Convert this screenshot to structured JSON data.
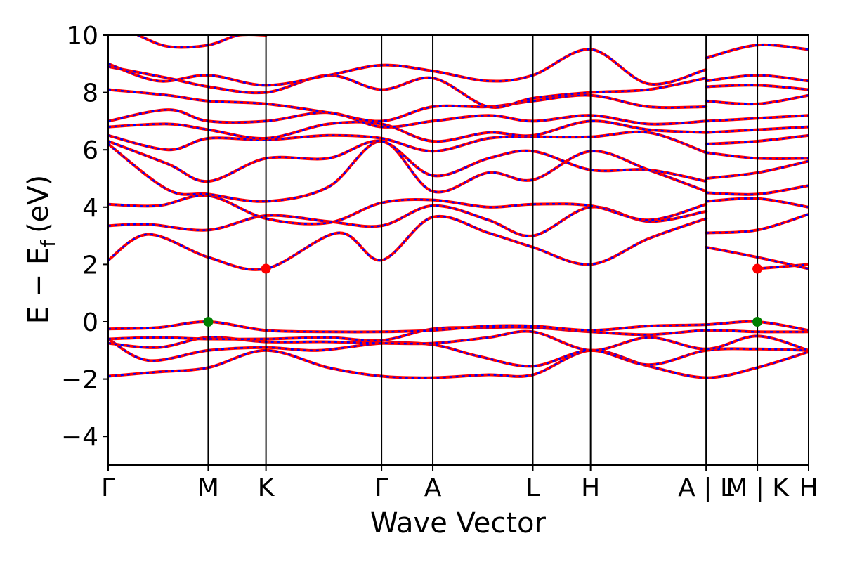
{
  "chart_data": {
    "type": "line",
    "xlabel": "Wave Vector",
    "ylabel": "E − E",
    "ylabel_sub": "f",
    "ylabel_unit": "(eV)",
    "ylim": [
      -5,
      10
    ],
    "yticks": [
      -4,
      -2,
      0,
      2,
      4,
      6,
      8,
      10
    ],
    "ytick_labels": [
      "−4",
      "−2",
      "0",
      "2",
      "4",
      "6",
      "8",
      "10"
    ],
    "kpath_labels": [
      "Γ",
      "M",
      "K",
      "Γ",
      "A",
      "L",
      "H",
      "A | L",
      "M | K",
      "H"
    ],
    "kpath_positions": [
      0,
      1,
      1.577,
      2.732,
      3.244,
      4.244,
      4.821,
      5.976,
      6.488,
      7.0
    ],
    "legend": "none",
    "grid": false,
    "series_colors": {
      "spin_up": "#ff0000",
      "spin_down": "#0000ff"
    },
    "markers": [
      {
        "name": "CBM",
        "color": "#ff0000",
        "points": [
          [
            1.577,
            1.85
          ],
          [
            6.488,
            1.85
          ]
        ]
      },
      {
        "name": "VBM",
        "color": "#008000",
        "points": [
          [
            1.0,
            0.0
          ],
          [
            6.488,
            0.0
          ]
        ]
      }
    ],
    "bands": [
      {
        "x": [
          0,
          0.5,
          1.0,
          1.577,
          2.2,
          2.732,
          3.244,
          3.8,
          4.244,
          4.821,
          5.4,
          5.976,
          6.488,
          7.0
        ],
        "y": [
          -1.9,
          -1.75,
          -1.6,
          -1.0,
          -1.6,
          -1.9,
          -1.95,
          -1.85,
          -1.85,
          -1.0,
          -1.55,
          -1.95,
          -1.6,
          -1.05
        ]
      },
      {
        "x": [
          0,
          0.4,
          1.0,
          1.577,
          2.1,
          2.732,
          3.244,
          3.7,
          4.244,
          4.821,
          5.4,
          5.976,
          6.488,
          7.0
        ],
        "y": [
          -0.6,
          -1.35,
          -1.0,
          -0.9,
          -1.0,
          -0.75,
          -0.8,
          -1.2,
          -1.55,
          -1.0,
          -1.5,
          -1.0,
          -0.95,
          -1.0
        ]
      },
      {
        "x": [
          0,
          0.5,
          1.0,
          1.577,
          2.2,
          2.732,
          3.244,
          3.8,
          4.244,
          4.821,
          5.4,
          5.976,
          6.488,
          7.0
        ],
        "y": [
          -0.75,
          -0.9,
          -0.55,
          -0.7,
          -0.7,
          -0.75,
          -0.75,
          -0.55,
          -0.35,
          -1.0,
          -0.55,
          -0.95,
          -0.5,
          -1.0
        ]
      },
      {
        "x": [
          0,
          0.5,
          1.0,
          1.577,
          2.2,
          2.732,
          3.244,
          3.8,
          4.244,
          4.821,
          5.4,
          5.976,
          6.488,
          7.0
        ],
        "y": [
          -0.6,
          -0.55,
          -0.6,
          -0.6,
          -0.55,
          -0.65,
          -0.25,
          -0.2,
          -0.2,
          -0.35,
          -0.45,
          -0.3,
          -0.35,
          -0.35
        ]
      },
      {
        "x": [
          0,
          0.5,
          1.0,
          1.577,
          2.2,
          2.732,
          3.244,
          3.8,
          4.244,
          4.821,
          5.4,
          5.976,
          6.488,
          7.0
        ],
        "y": [
          -0.25,
          -0.2,
          0.0,
          -0.3,
          -0.35,
          -0.35,
          -0.3,
          -0.15,
          -0.15,
          -0.3,
          -0.15,
          -0.1,
          0.0,
          -0.3
        ]
      },
      {
        "x": [
          0,
          0.4,
          1.0,
          1.577,
          2.3,
          2.732,
          3.244,
          3.8,
          4.244,
          4.821,
          5.4,
          5.976
        ],
        "y": [
          2.15,
          3.05,
          2.25,
          1.85,
          3.1,
          2.15,
          3.65,
          3.1,
          2.6,
          2.0,
          2.9,
          3.6
        ]
      },
      {
        "x": [
          5.976,
          6.488,
          7.0
        ],
        "y": [
          2.6,
          2.25,
          1.85
        ]
      },
      {
        "x": [
          6.488,
          7.0
        ],
        "y": [
          1.85,
          2.0
        ]
      },
      {
        "x": [
          0,
          0.4,
          1.0,
          1.577,
          2.2,
          2.732,
          3.244,
          3.8,
          4.244,
          4.821,
          5.4,
          5.976
        ],
        "y": [
          3.35,
          3.4,
          3.2,
          3.7,
          3.5,
          3.35,
          4.05,
          3.55,
          3.0,
          4.0,
          3.5,
          3.85
        ]
      },
      {
        "x": [
          0,
          0.5,
          1.0,
          1.577,
          2.2,
          2.732,
          3.244,
          3.8,
          4.244,
          4.821,
          5.4,
          5.976
        ],
        "y": [
          4.1,
          4.05,
          4.4,
          3.6,
          3.45,
          4.15,
          4.25,
          4.0,
          4.1,
          4.05,
          3.55,
          4.1
        ]
      },
      {
        "x": [
          5.976,
          6.488,
          7.0
        ],
        "y": [
          3.1,
          3.2,
          3.75
        ]
      },
      {
        "x": [
          5.976,
          6.488,
          7.0
        ],
        "y": [
          4.2,
          4.3,
          4.0
        ]
      },
      {
        "x": [
          0,
          0.6,
          1.0,
          1.577,
          2.2,
          2.732,
          3.244,
          3.8,
          4.244,
          4.821,
          5.4,
          5.976
        ],
        "y": [
          6.2,
          4.6,
          4.45,
          4.2,
          4.7,
          6.3,
          4.55,
          5.2,
          4.95,
          5.95,
          5.3,
          4.55
        ]
      },
      {
        "x": [
          0,
          0.6,
          1.0,
          1.577,
          2.2,
          2.732,
          3.244,
          3.8,
          4.244,
          4.821,
          5.4,
          5.976
        ],
        "y": [
          6.3,
          5.5,
          4.9,
          5.7,
          5.7,
          6.3,
          5.1,
          5.7,
          5.95,
          5.3,
          5.3,
          4.9
        ]
      },
      {
        "x": [
          0,
          0.6,
          1.0,
          1.577,
          2.2,
          2.732,
          3.244,
          3.8,
          4.244,
          4.821,
          5.4,
          5.976
        ],
        "y": [
          6.5,
          6.0,
          6.4,
          6.35,
          6.5,
          6.4,
          5.95,
          6.4,
          6.45,
          6.45,
          6.6,
          5.9
        ]
      },
      {
        "x": [
          0,
          0.6,
          1.0,
          1.577,
          2.2,
          2.732,
          3.244,
          3.8,
          4.244,
          4.821,
          5.4,
          5.976
        ],
        "y": [
          6.8,
          6.9,
          6.7,
          6.4,
          6.9,
          6.9,
          6.3,
          6.6,
          6.5,
          7.0,
          6.7,
          6.6
        ]
      },
      {
        "x": [
          0,
          0.6,
          1.0,
          1.577,
          2.2,
          2.732,
          3.244,
          3.8,
          4.244,
          4.821,
          5.4,
          5.976
        ],
        "y": [
          7.0,
          7.4,
          7.0,
          7.0,
          7.3,
          6.8,
          7.0,
          7.2,
          7.0,
          7.2,
          6.9,
          7.0
        ]
      },
      {
        "x": [
          0,
          0.6,
          1.0,
          1.577,
          2.2,
          2.732,
          3.244,
          3.8,
          4.244,
          4.821,
          5.4,
          5.976
        ],
        "y": [
          8.1,
          7.9,
          7.7,
          7.6,
          7.3,
          7.0,
          7.5,
          7.5,
          7.7,
          7.9,
          7.5,
          7.5
        ]
      },
      {
        "x": [
          0,
          0.6,
          1.0,
          1.577,
          2.2,
          2.732,
          3.244,
          3.8,
          4.244,
          4.821,
          5.4,
          5.976
        ],
        "y": [
          8.9,
          8.5,
          8.2,
          8.0,
          8.6,
          8.1,
          8.5,
          7.5,
          7.8,
          8.0,
          8.1,
          8.5
        ]
      },
      {
        "x": [
          0,
          0.5,
          1.0,
          1.577,
          2.2,
          2.732,
          3.244,
          3.8,
          4.244,
          4.821,
          5.4,
          5.976
        ],
        "y": [
          9.0,
          8.4,
          8.6,
          8.25,
          8.6,
          8.95,
          8.75,
          8.4,
          8.6,
          9.5,
          8.3,
          8.8
        ]
      },
      {
        "x": [
          5.976,
          6.488,
          7.0
        ],
        "y": [
          4.5,
          4.45,
          4.75
        ]
      },
      {
        "x": [
          5.976,
          6.488,
          7.0
        ],
        "y": [
          5.0,
          5.2,
          5.6
        ]
      },
      {
        "x": [
          5.976,
          6.488,
          7.0
        ],
        "y": [
          5.9,
          5.7,
          5.7
        ]
      },
      {
        "x": [
          5.976,
          6.488,
          7.0
        ],
        "y": [
          6.2,
          6.3,
          6.5
        ]
      },
      {
        "x": [
          5.976,
          6.488,
          7.0
        ],
        "y": [
          6.6,
          6.7,
          6.8
        ]
      },
      {
        "x": [
          5.976,
          6.488,
          7.0
        ],
        "y": [
          7.0,
          7.1,
          7.2
        ]
      },
      {
        "x": [
          5.976,
          6.488,
          7.0
        ],
        "y": [
          7.7,
          7.6,
          7.9
        ]
      },
      {
        "x": [
          5.976,
          6.488,
          7.0
        ],
        "y": [
          8.2,
          8.25,
          8.1
        ]
      },
      {
        "x": [
          5.976,
          6.488,
          7.0
        ],
        "y": [
          8.4,
          8.6,
          8.4
        ]
      },
      {
        "x": [
          5.976,
          6.488,
          7.0
        ],
        "y": [
          9.2,
          9.65,
          9.5
        ]
      },
      {
        "x": [
          0.3,
          0.6,
          1.0,
          1.3,
          1.577
        ],
        "y": [
          10.0,
          9.6,
          9.65,
          10.0,
          10.0
        ]
      }
    ]
  }
}
